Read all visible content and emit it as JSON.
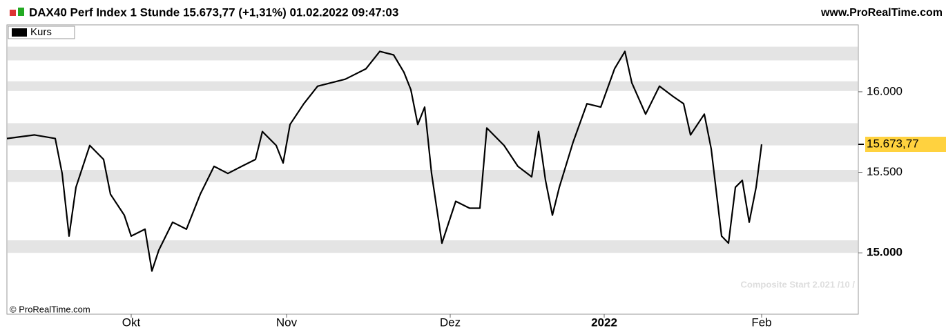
{
  "chart_data": {
    "type": "line",
    "title": "DAX40 Perf Index 1 Stunde 15.673,77 (+1,31%) 01.02.2022 09:47:03",
    "source": "www.ProRealTime.com",
    "copyright": "© ProRealTime.com",
    "annotation": "Composite Start 2.021 /10 /",
    "x": [
      0,
      4,
      7,
      8,
      9,
      10,
      12,
      14,
      15,
      17,
      18,
      20,
      21,
      22,
      24,
      26,
      28,
      30,
      32,
      34,
      36,
      37,
      39,
      40,
      41,
      43,
      45,
      49,
      52,
      54,
      56,
      57.5,
      58.5,
      59.5,
      60.5,
      61.5,
      63,
      65,
      67,
      68.5,
      69.5,
      72,
      74,
      76,
      77,
      78,
      79,
      80,
      82,
      84,
      86,
      88,
      89.5,
      90.5,
      92.5,
      94.5,
      96.5,
      98,
      99,
      101,
      102,
      103.5,
      104.5,
      105.5,
      106.5,
      107.5,
      108.5,
      109.3
    ],
    "series": [
      {
        "name": "Kurs",
        "color": "#000000",
        "values": [
          15710,
          15732,
          15710,
          15493,
          15104,
          15407,
          15667,
          15580,
          15364,
          15234,
          15104,
          15147,
          14887,
          15017,
          15190,
          15147,
          15364,
          15537,
          15493,
          15537,
          15580,
          15753,
          15667,
          15558,
          15797,
          15926,
          16035,
          16078,
          16143,
          16251,
          16229,
          16121,
          16013,
          15797,
          15905,
          15493,
          15060,
          15320,
          15277,
          15277,
          15775,
          15667,
          15537,
          15472,
          15753,
          15450,
          15234,
          15407,
          15688,
          15926,
          15905,
          16143,
          16251,
          16056,
          15861,
          16035,
          15970,
          15926,
          15732,
          15861,
          15645,
          15104,
          15060,
          15407,
          15450,
          15190,
          15407,
          15673.77
        ]
      }
    ],
    "xlim": [
      0,
      123.3
    ],
    "xticks": [
      {
        "value": 18,
        "label": "Okt"
      },
      {
        "value": 40.5,
        "label": "Nov"
      },
      {
        "value": 64.2,
        "label": "Dez"
      },
      {
        "value": 86.5,
        "label": "2022"
      },
      {
        "value": 109.3,
        "label": "Feb"
      }
    ],
    "ylim": [
      14619,
      16407
    ],
    "yticks": [
      {
        "value": 15000,
        "label": "15.000"
      },
      {
        "value": 15500,
        "label": "15.500"
      },
      {
        "value": 16000,
        "label": "16.000"
      }
    ],
    "last_price": {
      "value": 15673.77,
      "label": "15.673,77"
    },
    "zones": [
      {
        "low": 16195,
        "high": 16280
      },
      {
        "low": 16005,
        "high": 16065
      },
      {
        "low": 15667,
        "high": 15805
      },
      {
        "low": 15440,
        "high": 15515
      },
      {
        "low": 15000,
        "high": 15078
      }
    ]
  }
}
